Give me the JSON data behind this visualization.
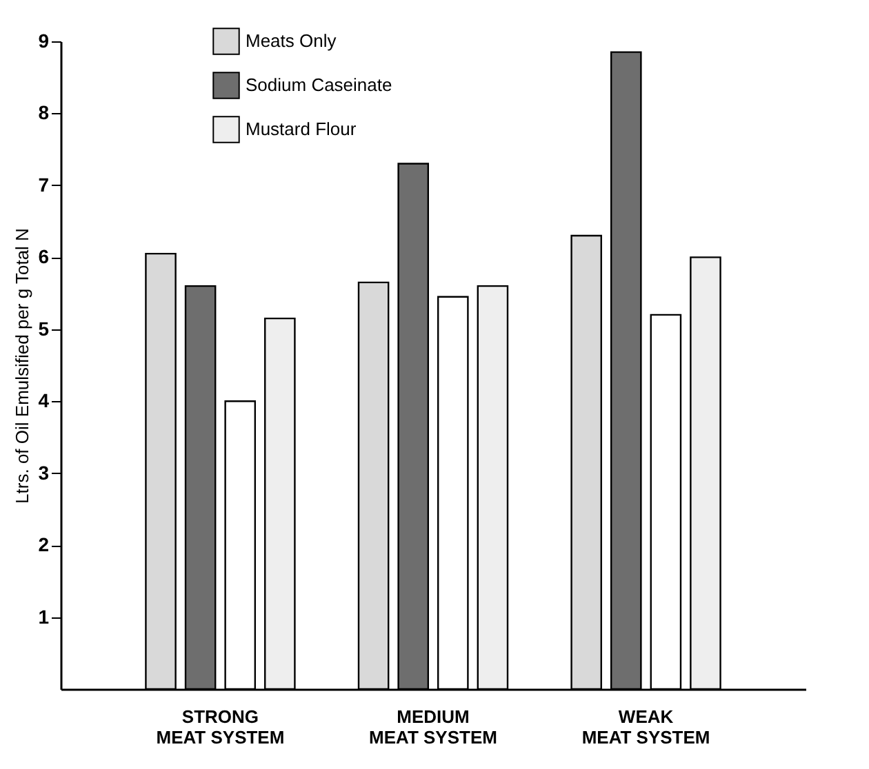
{
  "chart_data": {
    "type": "bar",
    "ylabel": "Ltrs. of Oil Emulsified per g Total N",
    "categories": [
      "STRONG\nMEAT SYSTEM",
      "MEDIUM\nMEAT SYSTEM",
      "WEAK\nMEAT SYSTEM"
    ],
    "series": [
      {
        "name": "Meats Only",
        "color": "#d9d9d9",
        "values": [
          6.05,
          5.65,
          6.3
        ]
      },
      {
        "name": "Sodium Caseinate",
        "color": "#6e6e6e",
        "values": [
          5.6,
          7.3,
          8.85
        ]
      },
      {
        "color": "#ffffff",
        "values": [
          4.0,
          5.45,
          5.2
        ]
      },
      {
        "name": "Mustard Flour",
        "color": "#eeeeee",
        "values": [
          5.15,
          5.6,
          6.0
        ]
      }
    ],
    "ylim": [
      0,
      9
    ],
    "yticks": [
      1,
      2,
      3,
      4,
      5,
      6,
      7,
      8,
      9
    ],
    "grid": false,
    "legend": "top left"
  }
}
